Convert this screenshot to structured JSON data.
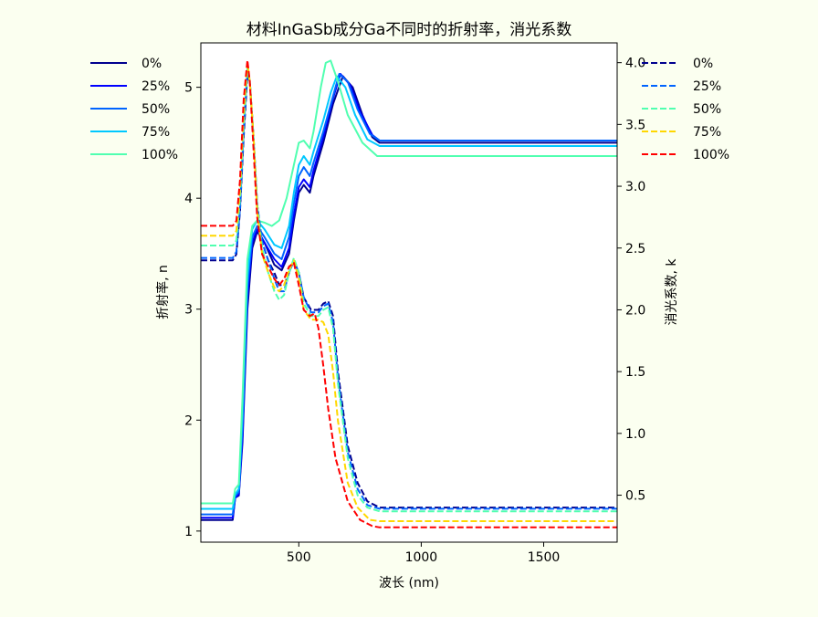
{
  "chart_data": {
    "type": "line",
    "title": "材料InGaSb成分Ga不同时的折射率，消光系数",
    "xlabel": "波长 (nm)",
    "ylabel_left": "折射率, n",
    "ylabel_right": "消光系数, k",
    "xlim": [
      100,
      1800
    ],
    "ylim_left": [
      0.9,
      5.4
    ],
    "ylim_right": [
      0.12,
      4.16
    ],
    "xticks": [
      500,
      1000,
      1500
    ],
    "yticks_left": [
      1,
      2,
      3,
      4,
      5
    ],
    "yticks_right": [
      0.5,
      1.0,
      1.5,
      2.0,
      2.5,
      3.0,
      3.5,
      4.0
    ],
    "legend_n": {
      "placement": "left-outside-top",
      "labels": [
        "0%",
        "25%",
        "50%",
        "75%",
        "100%"
      ]
    },
    "legend_k": {
      "placement": "right-outside-top",
      "labels": [
        "0%",
        "25%",
        "50%",
        "75%",
        "100%"
      ]
    },
    "series_n": [
      {
        "name": "0%",
        "color": "#00008f",
        "style": "solid",
        "points": [
          [
            100,
            1.1
          ],
          [
            230,
            1.1
          ],
          [
            240,
            1.3
          ],
          [
            255,
            1.32
          ],
          [
            270,
            1.8
          ],
          [
            290,
            3.0
          ],
          [
            310,
            3.55
          ],
          [
            330,
            3.7
          ],
          [
            360,
            3.6
          ],
          [
            400,
            3.4
          ],
          [
            430,
            3.35
          ],
          [
            460,
            3.5
          ],
          [
            480,
            3.8
          ],
          [
            500,
            4.05
          ],
          [
            520,
            4.12
          ],
          [
            545,
            4.05
          ],
          [
            560,
            4.2
          ],
          [
            600,
            4.5
          ],
          [
            640,
            4.85
          ],
          [
            680,
            5.1
          ],
          [
            720,
            5.0
          ],
          [
            760,
            4.75
          ],
          [
            800,
            4.55
          ],
          [
            830,
            4.5
          ],
          [
            1800,
            4.5
          ]
        ]
      },
      {
        "name": "25%",
        "color": "#0000ff",
        "style": "solid",
        "points": [
          [
            100,
            1.12
          ],
          [
            230,
            1.12
          ],
          [
            240,
            1.3
          ],
          [
            255,
            1.33
          ],
          [
            270,
            1.85
          ],
          [
            290,
            3.1
          ],
          [
            310,
            3.6
          ],
          [
            330,
            3.72
          ],
          [
            360,
            3.6
          ],
          [
            400,
            3.45
          ],
          [
            430,
            3.38
          ],
          [
            460,
            3.55
          ],
          [
            480,
            3.85
          ],
          [
            500,
            4.1
          ],
          [
            520,
            4.17
          ],
          [
            545,
            4.1
          ],
          [
            560,
            4.25
          ],
          [
            600,
            4.55
          ],
          [
            640,
            4.9
          ],
          [
            670,
            5.12
          ],
          [
            710,
            5.02
          ],
          [
            750,
            4.78
          ],
          [
            800,
            4.57
          ],
          [
            830,
            4.52
          ],
          [
            1800,
            4.52
          ]
        ]
      },
      {
        "name": "50%",
        "color": "#0064ff",
        "style": "solid",
        "points": [
          [
            100,
            1.15
          ],
          [
            230,
            1.15
          ],
          [
            240,
            1.32
          ],
          [
            255,
            1.35
          ],
          [
            270,
            1.95
          ],
          [
            290,
            3.2
          ],
          [
            310,
            3.65
          ],
          [
            330,
            3.75
          ],
          [
            360,
            3.65
          ],
          [
            400,
            3.5
          ],
          [
            430,
            3.45
          ],
          [
            460,
            3.65
          ],
          [
            480,
            3.95
          ],
          [
            500,
            4.2
          ],
          [
            520,
            4.28
          ],
          [
            545,
            4.2
          ],
          [
            560,
            4.32
          ],
          [
            600,
            4.6
          ],
          [
            640,
            4.92
          ],
          [
            665,
            5.12
          ],
          [
            700,
            5.05
          ],
          [
            740,
            4.8
          ],
          [
            790,
            4.58
          ],
          [
            830,
            4.52
          ],
          [
            1800,
            4.52
          ]
        ]
      },
      {
        "name": "75%",
        "color": "#00c8ff",
        "style": "solid",
        "points": [
          [
            100,
            1.2
          ],
          [
            230,
            1.2
          ],
          [
            240,
            1.33
          ],
          [
            255,
            1.38
          ],
          [
            270,
            2.05
          ],
          [
            290,
            3.3
          ],
          [
            310,
            3.72
          ],
          [
            330,
            3.8
          ],
          [
            360,
            3.72
          ],
          [
            400,
            3.58
          ],
          [
            430,
            3.55
          ],
          [
            460,
            3.75
          ],
          [
            480,
            4.05
          ],
          [
            500,
            4.3
          ],
          [
            520,
            4.38
          ],
          [
            545,
            4.3
          ],
          [
            560,
            4.42
          ],
          [
            600,
            4.7
          ],
          [
            630,
            4.95
          ],
          [
            655,
            5.1
          ],
          [
            690,
            5.0
          ],
          [
            730,
            4.75
          ],
          [
            780,
            4.53
          ],
          [
            830,
            4.47
          ],
          [
            1800,
            4.47
          ]
        ]
      },
      {
        "name": "100%",
        "color": "#50ffb0",
        "style": "solid",
        "points": [
          [
            100,
            1.25
          ],
          [
            230,
            1.25
          ],
          [
            240,
            1.38
          ],
          [
            255,
            1.42
          ],
          [
            270,
            2.2
          ],
          [
            290,
            3.45
          ],
          [
            310,
            3.75
          ],
          [
            330,
            3.8
          ],
          [
            360,
            3.78
          ],
          [
            390,
            3.75
          ],
          [
            420,
            3.8
          ],
          [
            450,
            4.0
          ],
          [
            480,
            4.3
          ],
          [
            500,
            4.5
          ],
          [
            520,
            4.52
          ],
          [
            545,
            4.45
          ],
          [
            560,
            4.6
          ],
          [
            590,
            5.0
          ],
          [
            610,
            5.22
          ],
          [
            630,
            5.24
          ],
          [
            660,
            5.05
          ],
          [
            700,
            4.75
          ],
          [
            760,
            4.5
          ],
          [
            820,
            4.38
          ],
          [
            1800,
            4.38
          ]
        ]
      }
    ],
    "series_k": [
      {
        "name": "0%",
        "color": "#00008f",
        "style": "dashed",
        "points": [
          [
            100,
            2.4
          ],
          [
            230,
            2.4
          ],
          [
            245,
            2.45
          ],
          [
            260,
            2.8
          ],
          [
            275,
            3.4
          ],
          [
            290,
            3.9
          ],
          [
            300,
            3.85
          ],
          [
            315,
            3.4
          ],
          [
            330,
            2.85
          ],
          [
            350,
            2.55
          ],
          [
            375,
            2.4
          ],
          [
            400,
            2.3
          ],
          [
            420,
            2.2
          ],
          [
            440,
            2.2
          ],
          [
            460,
            2.3
          ],
          [
            480,
            2.4
          ],
          [
            500,
            2.3
          ],
          [
            520,
            2.1
          ],
          [
            550,
            2.0
          ],
          [
            580,
            2.0
          ],
          [
            600,
            2.05
          ],
          [
            620,
            2.07
          ],
          [
            640,
            1.95
          ],
          [
            660,
            1.5
          ],
          [
            700,
            0.9
          ],
          [
            740,
            0.6
          ],
          [
            780,
            0.45
          ],
          [
            830,
            0.4
          ],
          [
            1800,
            0.4
          ]
        ]
      },
      {
        "name": "25%",
        "color": "#0064ff",
        "style": "dashed",
        "points": [
          [
            100,
            2.42
          ],
          [
            230,
            2.42
          ],
          [
            245,
            2.47
          ],
          [
            260,
            2.82
          ],
          [
            275,
            3.45
          ],
          [
            290,
            3.95
          ],
          [
            300,
            3.85
          ],
          [
            315,
            3.4
          ],
          [
            330,
            2.85
          ],
          [
            350,
            2.55
          ],
          [
            375,
            2.4
          ],
          [
            400,
            2.25
          ],
          [
            420,
            2.15
          ],
          [
            440,
            2.15
          ],
          [
            460,
            2.3
          ],
          [
            480,
            2.4
          ],
          [
            500,
            2.3
          ],
          [
            520,
            2.1
          ],
          [
            550,
            1.98
          ],
          [
            580,
            1.98
          ],
          [
            600,
            2.03
          ],
          [
            620,
            2.05
          ],
          [
            640,
            1.9
          ],
          [
            660,
            1.45
          ],
          [
            700,
            0.85
          ],
          [
            740,
            0.55
          ],
          [
            780,
            0.42
          ],
          [
            830,
            0.39
          ],
          [
            1800,
            0.39
          ]
        ]
      },
      {
        "name": "50%",
        "color": "#50ffb0",
        "style": "dashed",
        "points": [
          [
            100,
            2.52
          ],
          [
            230,
            2.52
          ],
          [
            245,
            2.56
          ],
          [
            260,
            2.9
          ],
          [
            275,
            3.5
          ],
          [
            290,
            3.95
          ],
          [
            300,
            3.85
          ],
          [
            315,
            3.4
          ],
          [
            330,
            2.85
          ],
          [
            350,
            2.5
          ],
          [
            375,
            2.3
          ],
          [
            400,
            2.15
          ],
          [
            420,
            2.08
          ],
          [
            440,
            2.12
          ],
          [
            460,
            2.3
          ],
          [
            480,
            2.42
          ],
          [
            500,
            2.3
          ],
          [
            520,
            2.05
          ],
          [
            550,
            1.95
          ],
          [
            580,
            1.95
          ],
          [
            600,
            2.0
          ],
          [
            620,
            2.02
          ],
          [
            640,
            1.85
          ],
          [
            660,
            1.4
          ],
          [
            700,
            0.8
          ],
          [
            740,
            0.5
          ],
          [
            780,
            0.4
          ],
          [
            830,
            0.37
          ],
          [
            1800,
            0.37
          ]
        ]
      },
      {
        "name": "75%",
        "color": "#ffd700",
        "style": "dashed",
        "points": [
          [
            100,
            2.6
          ],
          [
            230,
            2.6
          ],
          [
            245,
            2.64
          ],
          [
            260,
            2.98
          ],
          [
            275,
            3.6
          ],
          [
            290,
            4.0
          ],
          [
            300,
            3.85
          ],
          [
            315,
            3.4
          ],
          [
            330,
            2.8
          ],
          [
            350,
            2.45
          ],
          [
            375,
            2.3
          ],
          [
            400,
            2.18
          ],
          [
            420,
            2.15
          ],
          [
            440,
            2.2
          ],
          [
            460,
            2.32
          ],
          [
            480,
            2.4
          ],
          [
            500,
            2.25
          ],
          [
            520,
            2.0
          ],
          [
            550,
            1.92
          ],
          [
            580,
            1.92
          ],
          [
            600,
            1.9
          ],
          [
            620,
            1.8
          ],
          [
            640,
            1.5
          ],
          [
            660,
            1.1
          ],
          [
            700,
            0.6
          ],
          [
            740,
            0.4
          ],
          [
            790,
            0.3
          ],
          [
            830,
            0.29
          ],
          [
            1800,
            0.29
          ]
        ]
      },
      {
        "name": "100%",
        "color": "#ff0000",
        "style": "dashed",
        "points": [
          [
            100,
            2.68
          ],
          [
            230,
            2.68
          ],
          [
            245,
            2.72
          ],
          [
            260,
            3.05
          ],
          [
            275,
            3.7
          ],
          [
            290,
            4.02
          ],
          [
            300,
            3.85
          ],
          [
            315,
            3.3
          ],
          [
            330,
            2.75
          ],
          [
            350,
            2.45
          ],
          [
            375,
            2.35
          ],
          [
            400,
            2.25
          ],
          [
            420,
            2.2
          ],
          [
            440,
            2.25
          ],
          [
            460,
            2.35
          ],
          [
            480,
            2.38
          ],
          [
            500,
            2.2
          ],
          [
            520,
            2.0
          ],
          [
            545,
            1.95
          ],
          [
            565,
            1.97
          ],
          [
            580,
            1.85
          ],
          [
            600,
            1.55
          ],
          [
            620,
            1.2
          ],
          [
            650,
            0.8
          ],
          [
            700,
            0.45
          ],
          [
            750,
            0.3
          ],
          [
            800,
            0.25
          ],
          [
            830,
            0.24
          ],
          [
            1800,
            0.24
          ]
        ]
      }
    ]
  }
}
